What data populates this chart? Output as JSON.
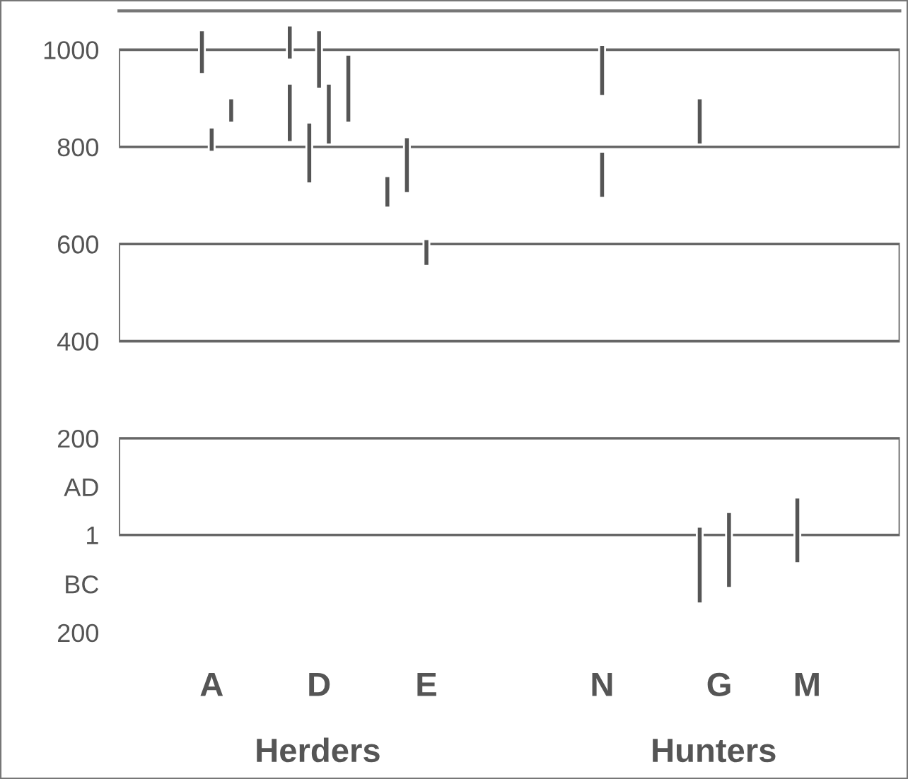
{
  "chart_data": {
    "type": "bar",
    "categories": [
      null,
      null,
      null,
      null,
      null,
      null,
      null,
      null,
      null,
      "A",
      null,
      null,
      null,
      null,
      null,
      null,
      null,
      null,
      null,
      null,
      "D",
      null,
      null,
      null,
      null,
      null,
      null,
      null,
      null,
      null,
      null,
      "E",
      null,
      null,
      null,
      null,
      null,
      null,
      null,
      null,
      null,
      null,
      null,
      null,
      null,
      null,
      null,
      null,
      null,
      "N",
      null,
      null,
      null,
      null,
      null,
      null,
      null,
      null,
      null,
      null,
      null,
      "G",
      null,
      null,
      null,
      null,
      null,
      null,
      null,
      null,
      "M",
      null,
      null,
      null,
      null,
      null,
      null,
      null,
      null,
      null
    ],
    "series": [
      {
        "color": "#555555",
        "values": [
          null,
          null,
          null,
          null,
          null,
          null,
          null,
          null,
          90,
          50,
          null,
          50,
          null,
          null,
          null,
          null,
          null,
          70,
          null,
          125,
          120,
          125,
          null,
          140,
          null,
          null,
          null,
          65,
          null,
          115,
          null,
          55,
          null,
          null,
          null,
          null,
          null,
          null,
          null,
          null,
          null,
          null,
          null,
          null,
          null,
          null,
          null,
          null,
          null,
          105,
          null,
          null,
          null,
          null,
          null,
          null,
          null,
          null,
          null,
          95,
          null,
          null,
          156,
          null,
          null,
          null,
          null,
          null,
          null,
          135,
          null,
          null,
          null,
          null,
          null,
          null,
          null,
          null,
          null,
          null
        ],
        "base": [
          null,
          null,
          null,
          null,
          null,
          null,
          null,
          null,
          950,
          790,
          null,
          850,
          null,
          null,
          null,
          null,
          null,
          980,
          null,
          725,
          920,
          805,
          null,
          850,
          null,
          null,
          null,
          675,
          null,
          705,
          null,
          555,
          null,
          null,
          null,
          null,
          null,
          null,
          null,
          null,
          null,
          null,
          null,
          null,
          null,
          null,
          null,
          null,
          null,
          905,
          null,
          null,
          null,
          null,
          null,
          null,
          null,
          null,
          null,
          805,
          null,
          null,
          -108,
          null,
          null,
          null,
          null,
          null,
          null,
          -57,
          null,
          null,
          null,
          null,
          null,
          null,
          null,
          null,
          null,
          null
        ]
      },
      {
        "color": "#555555",
        "values": [
          null,
          null,
          null,
          null,
          null,
          null,
          null,
          null,
          null,
          null,
          null,
          null,
          null,
          null,
          null,
          null,
          null,
          120,
          null,
          null,
          null,
          null,
          null,
          null,
          null,
          null,
          null,
          null,
          null,
          null,
          null,
          null,
          null,
          null,
          null,
          null,
          null,
          null,
          null,
          null,
          null,
          null,
          null,
          null,
          null,
          null,
          null,
          null,
          null,
          95,
          null,
          null,
          null,
          null,
          null,
          null,
          null,
          null,
          null,
          158,
          null,
          null,
          null,
          null,
          null,
          null,
          null,
          null,
          null,
          null,
          null,
          null,
          null,
          null,
          null,
          null,
          null,
          null,
          null,
          null
        ],
        "base": [
          null,
          null,
          null,
          null,
          null,
          null,
          null,
          null,
          null,
          null,
          null,
          null,
          null,
          null,
          null,
          null,
          null,
          810,
          null,
          null,
          null,
          null,
          null,
          null,
          null,
          null,
          null,
          null,
          null,
          null,
          null,
          null,
          null,
          null,
          null,
          null,
          null,
          null,
          null,
          null,
          null,
          null,
          null,
          null,
          null,
          null,
          null,
          null,
          null,
          695,
          null,
          null,
          null,
          null,
          null,
          null,
          null,
          null,
          null,
          -140,
          null,
          null,
          null,
          null,
          null,
          null,
          null,
          null,
          null,
          null,
          null,
          null,
          null,
          null,
          null,
          null,
          null,
          null,
          null,
          null
        ]
      }
    ],
    "ylim": [
      -200,
      1080
    ],
    "yticks": [
      1000,
      800,
      600,
      400,
      200,
      {
        "value": 100,
        "label": "AD"
      },
      1,
      {
        "value": -100,
        "label": "BC"
      },
      {
        "value": -200,
        "label": "200"
      }
    ],
    "bands": [
      {
        "axis": "y",
        "from": 800,
        "to": 1000,
        "color": "#ffffff"
      },
      {
        "axis": "y",
        "from": 400,
        "to": 600,
        "color": "#ffffff"
      },
      {
        "axis": "y",
        "from": 1,
        "to": 200,
        "color": "#ffffff"
      }
    ],
    "annotations": [
      "Herders",
      "Hunters"
    ],
    "grid": false,
    "legend": false
  }
}
